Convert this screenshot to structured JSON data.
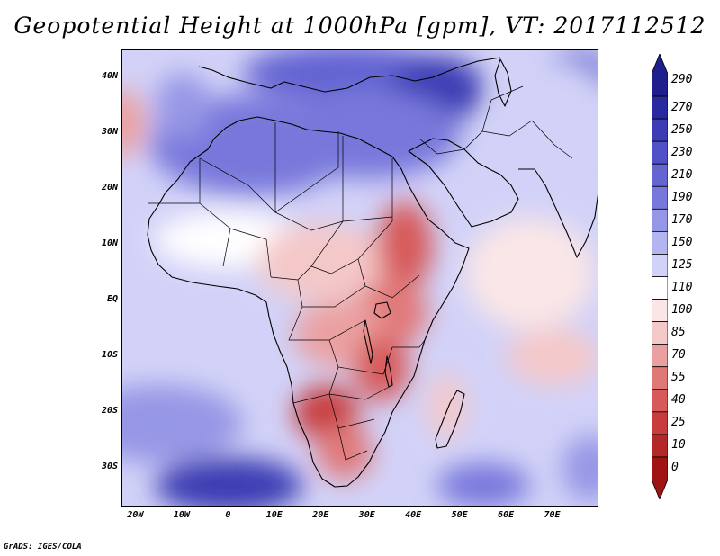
{
  "title": "Geopotential Height at 1000hPa [gpm], VT: 2017112512",
  "footer": "GrADS: IGES/COLA",
  "map": {
    "lon_range": [
      -23,
      80
    ],
    "lat_range": [
      -37,
      45
    ],
    "lat_ticks": [
      {
        "value": 40,
        "label": "40N"
      },
      {
        "value": 30,
        "label": "30N"
      },
      {
        "value": 20,
        "label": "20N"
      },
      {
        "value": 10,
        "label": "10N"
      },
      {
        "value": 0,
        "label": "EQ"
      },
      {
        "value": -10,
        "label": "10S"
      },
      {
        "value": -20,
        "label": "20S"
      },
      {
        "value": -30,
        "label": "30S"
      }
    ],
    "lon_ticks": [
      {
        "value": -20,
        "label": "20W"
      },
      {
        "value": -10,
        "label": "10W"
      },
      {
        "value": 0,
        "label": "0"
      },
      {
        "value": 10,
        "label": "10E"
      },
      {
        "value": 20,
        "label": "20E"
      },
      {
        "value": 30,
        "label": "30E"
      },
      {
        "value": 40,
        "label": "40E"
      },
      {
        "value": 50,
        "label": "50E"
      },
      {
        "value": 60,
        "label": "60E"
      },
      {
        "value": 70,
        "label": "70E"
      }
    ],
    "field_blobs": [
      {
        "lon": 25,
        "lat": 41,
        "rlon": 22,
        "rlat": 5,
        "level": 205
      },
      {
        "lon": 45,
        "lat": 38,
        "rlon": 10,
        "rlat": 6,
        "level": 250
      },
      {
        "lon": 75,
        "lat": 40,
        "rlon": 8,
        "rlat": 5,
        "level": 215
      },
      {
        "lon": 5,
        "lat": 28,
        "rlon": 22,
        "rlat": 9,
        "level": 195
      },
      {
        "lon": 30,
        "lat": 30,
        "rlon": 20,
        "rlat": 8,
        "level": 180
      },
      {
        "lon": 70,
        "lat": 35,
        "rlon": 12,
        "rlat": 8,
        "level": 125
      },
      {
        "lon": -10,
        "lat": 35,
        "rlon": 6,
        "rlat": 6,
        "level": 165
      },
      {
        "lon": -23,
        "lat": 32,
        "rlon": 5,
        "rlat": 6,
        "level": 75
      },
      {
        "lon": 0,
        "lat": 11,
        "rlon": 16,
        "rlat": 5,
        "level": 105
      },
      {
        "lon": 20,
        "lat": 7,
        "rlon": 14,
        "rlat": 7,
        "level": 88
      },
      {
        "lon": 38,
        "lat": 10,
        "rlon": 6,
        "rlat": 8,
        "level": 45
      },
      {
        "lon": 35,
        "lat": -2,
        "rlon": 8,
        "rlat": 6,
        "level": 55
      },
      {
        "lon": 24,
        "lat": -6,
        "rlon": 10,
        "rlat": 6,
        "level": 70
      },
      {
        "lon": 33,
        "lat": -12,
        "rlon": 6,
        "rlat": 6,
        "level": 40
      },
      {
        "lon": 21,
        "lat": -20,
        "rlon": 7,
        "rlat": 5,
        "level": 20
      },
      {
        "lon": 25,
        "lat": -27,
        "rlon": 6,
        "rlat": 5,
        "level": 50
      },
      {
        "lon": 65,
        "lat": 5,
        "rlon": 14,
        "rlat": 10,
        "level": 95
      },
      {
        "lon": 70,
        "lat": -10,
        "rlon": 10,
        "rlat": 5,
        "level": 80
      },
      {
        "lon": 47,
        "lat": -19,
        "rlon": 4,
        "rlat": 6,
        "level": 85
      },
      {
        "lon": -15,
        "lat": -22,
        "rlon": 18,
        "rlat": 7,
        "level": 175
      },
      {
        "lon": 0,
        "lat": -33,
        "rlon": 16,
        "rlat": 5,
        "level": 255
      },
      {
        "lon": 55,
        "lat": -33,
        "rlon": 10,
        "rlat": 4,
        "level": 190
      },
      {
        "lon": 78,
        "lat": -30,
        "rlon": 6,
        "rlat": 6,
        "level": 160
      }
    ]
  },
  "colorbar": {
    "labels": [
      "290",
      "270",
      "250",
      "230",
      "210",
      "190",
      "170",
      "150",
      "125",
      "110",
      "100",
      "85",
      "70",
      "55",
      "40",
      "25",
      "10",
      "0"
    ],
    "colors": [
      "#1e1e8c",
      "#2a2aa0",
      "#3c3cb4",
      "#5050c8",
      "#6464d2",
      "#7878dc",
      "#9696e6",
      "#b4b4f0",
      "#d2d2f8",
      "#ffffff",
      "#fae6e6",
      "#f5c8c8",
      "#eba0a0",
      "#e17878",
      "#d75a5a",
      "#c83c3c",
      "#b42828",
      "#a01414"
    ]
  }
}
